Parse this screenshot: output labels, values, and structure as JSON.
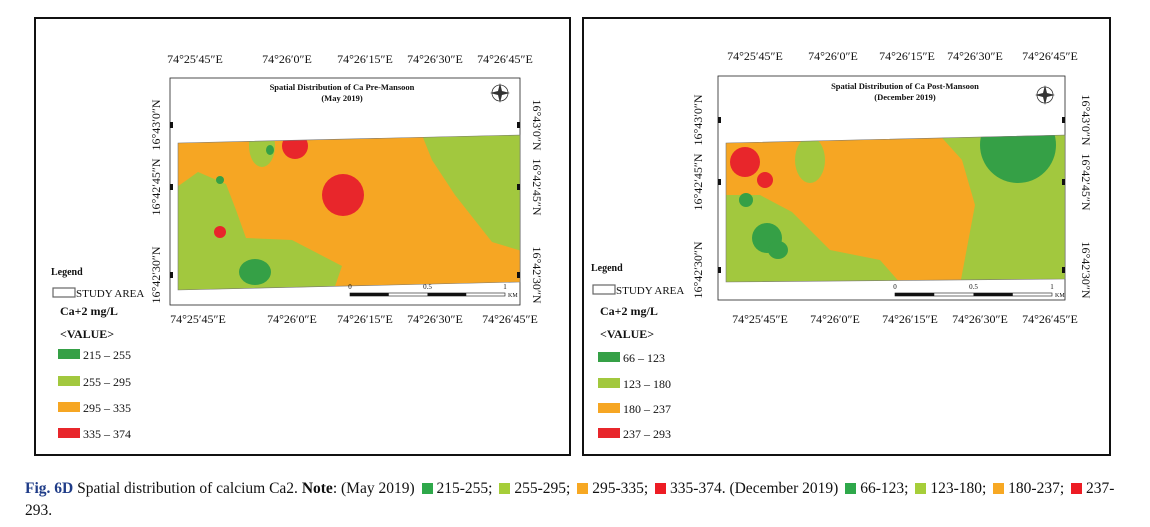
{
  "panels": [
    {
      "title_lines": [
        "Spatial Distribution of Ca Pre-Mansoon",
        "(May 2019)"
      ],
      "top_labels": [
        "74°25′45″E",
        "74°26′0″E",
        "74°26′15″E",
        "74°26′30″E",
        "74°26′45″E"
      ],
      "bottom_labels": [
        "74°25′45″E",
        "74°26′0″E",
        "74°26′15″E",
        "74°26′30″E",
        "74°26′45″E"
      ],
      "left_labels": [
        "16°43′0″N",
        "16°42′45″N",
        "16°42′30″N"
      ],
      "right_labels": [
        "16°43′0″N",
        "16°42′45″N",
        "16°42′30″N"
      ],
      "legend": {
        "title": "Legend",
        "study_area": "STUDY AREA",
        "unit": "Ca+2 mg/L",
        "value_header": "<VALUE>",
        "classes": [
          {
            "label": "215 – 255",
            "color": "#35a046"
          },
          {
            "label": "255 – 295",
            "color": "#a2c83e"
          },
          {
            "label": "295 – 335",
            "color": "#f6a623"
          },
          {
            "label": "335 – 374",
            "color": "#e8262b"
          }
        ]
      },
      "scale_labels": [
        "0",
        "0.5",
        "1"
      ],
      "scale_unit": "KM"
    },
    {
      "title_lines": [
        "Spatial Distribution of Ca Post-Mansoon",
        "(December 2019)"
      ],
      "top_labels": [
        "74°25′45″E",
        "74°26′0″E",
        "74°26′15″E",
        "74°26′30″E",
        "74°26′45″E"
      ],
      "bottom_labels": [
        "74°25′45″E",
        "74°26′0″E",
        "74°26′15″E",
        "74°26′30″E",
        "74°26′45″E"
      ],
      "left_labels": [
        "16°43′0″N",
        "16°42′45″N",
        "16°42′30″N"
      ],
      "right_labels": [
        "16°43′0″N",
        "16°42′45″N",
        "16°42′30″N"
      ],
      "legend": {
        "title": "Legend",
        "study_area": "STUDY AREA",
        "unit": "Ca+2 mg/L",
        "value_header": "<VALUE>",
        "classes": [
          {
            "label": "66 – 123",
            "color": "#35a046"
          },
          {
            "label": "123 – 180",
            "color": "#a2c83e"
          },
          {
            "label": "180 – 237",
            "color": "#f6a623"
          },
          {
            "label": "237 – 293",
            "color": "#e8262b"
          }
        ]
      },
      "scale_labels": [
        "0",
        "0.5",
        "1"
      ],
      "scale_unit": "KM"
    }
  ],
  "caption": {
    "figure": "Fig. 6D",
    "text": "Spatial distribution of calcium Ca2.",
    "note": "Note",
    "groups": [
      {
        "period": "(May 2019)",
        "items": [
          {
            "label": "215-255;",
            "color": "#2ea84a"
          },
          {
            "label": "255-295;",
            "color": "#a6ce39"
          },
          {
            "label": "295-335;",
            "color": "#f7a823"
          },
          {
            "label": "335-374.",
            "color": "#ed1c24"
          }
        ]
      },
      {
        "period": "(December 2019)",
        "items": [
          {
            "label": "66-123;",
            "color": "#2ea84a"
          },
          {
            "label": "123-180;",
            "color": "#a6ce39"
          },
          {
            "label": "180-237;",
            "color": "#f7a823"
          },
          {
            "label": "237-293.",
            "color": "#ed1c24"
          }
        ]
      }
    ]
  }
}
